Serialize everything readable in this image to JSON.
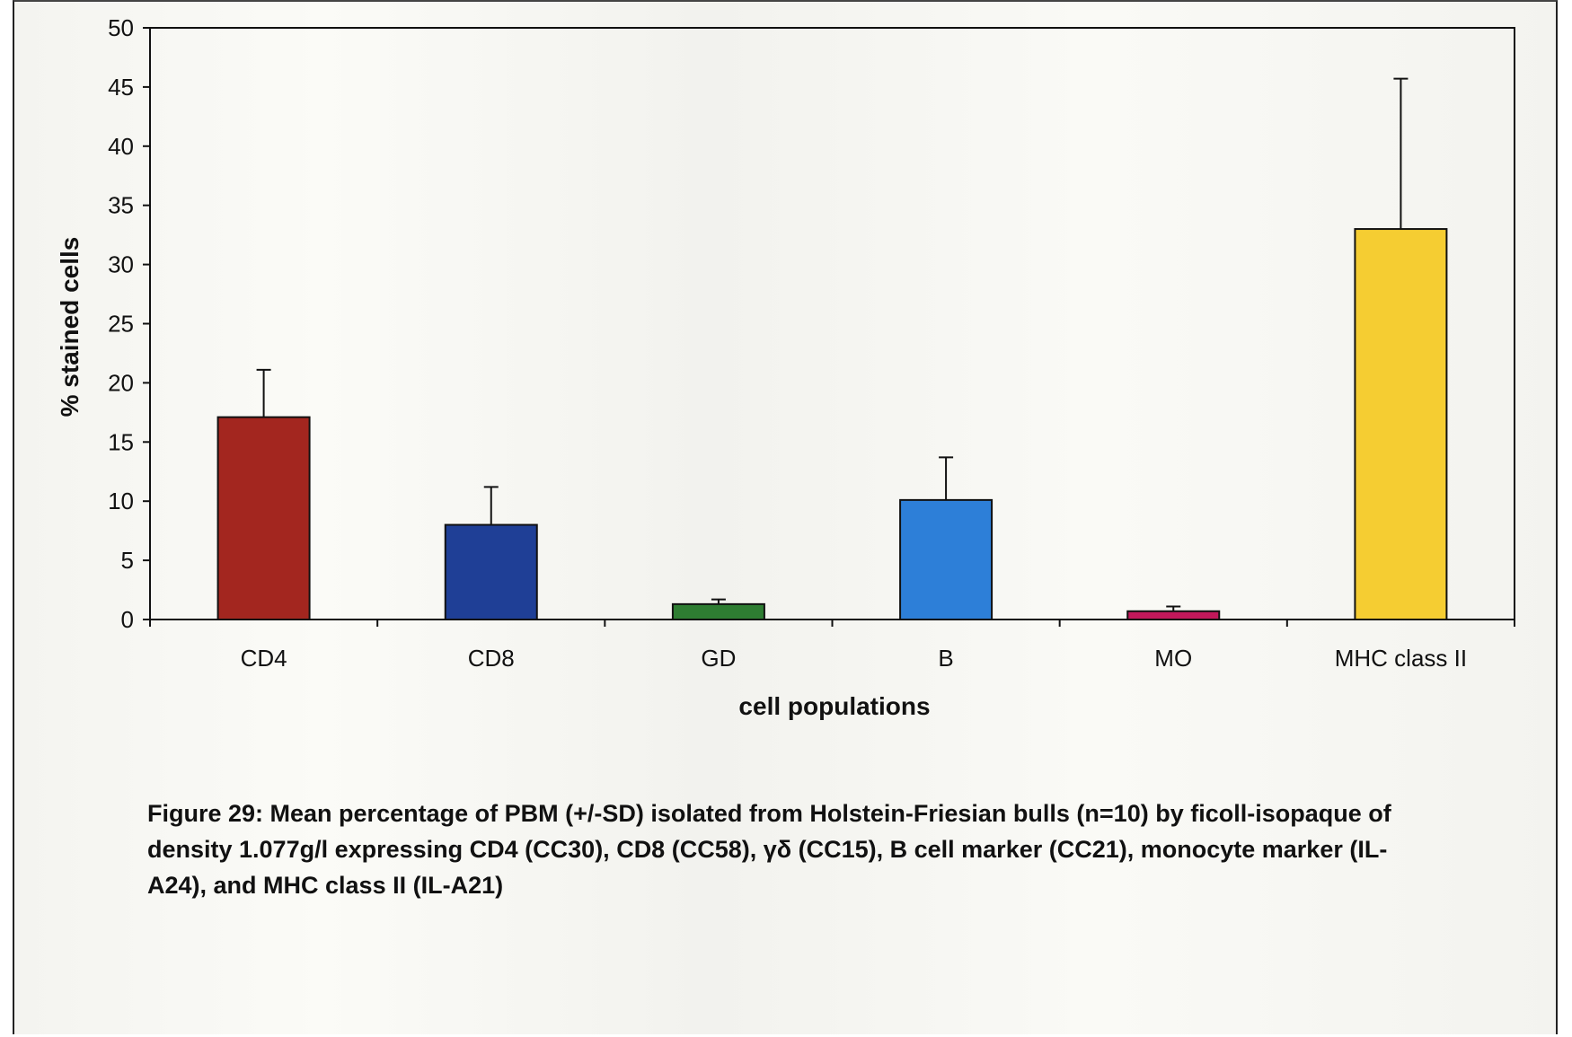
{
  "caption": "Figure 29: Mean percentage of PBM (+/-SD) isolated from Holstein-Friesian bulls (n=10) by ficoll-isopaque of density 1.077g/l expressing CD4 (CC30), CD8 (CC58), γδ (CC15), B cell marker (CC21), monocyte marker (IL-A24), and MHC class II (IL-A21)",
  "chart_data": {
    "type": "bar",
    "title": "",
    "xlabel": "cell populations",
    "ylabel": "% stained cells",
    "ylim": [
      0,
      50
    ],
    "yticks": [
      0,
      5,
      10,
      15,
      20,
      25,
      30,
      35,
      40,
      45,
      50
    ],
    "grid": false,
    "legend": "none",
    "categories": [
      "CD4",
      "CD8",
      "GD",
      "B",
      "MO",
      "MHC class II"
    ],
    "values": [
      17.1,
      8.0,
      1.3,
      10.1,
      0.7,
      33.0
    ],
    "error_plus": [
      4.0,
      3.2,
      0.4,
      3.6,
      0.4,
      12.7
    ],
    "colors": [
      "#a3261f",
      "#1f3f96",
      "#2e7d32",
      "#2d7fd8",
      "#c2185b",
      "#f5cd32"
    ]
  }
}
